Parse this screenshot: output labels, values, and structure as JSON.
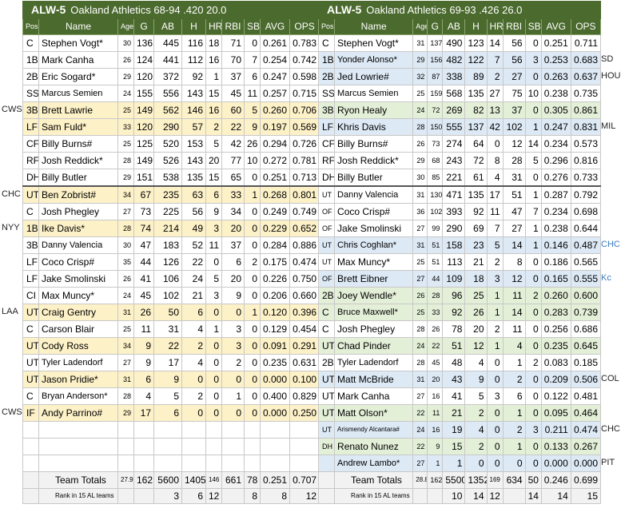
{
  "left": {
    "title": "ALW-5",
    "subtitle": "Oakland Athletics 68-94 .420 20.0",
    "headers": {
      "pos": "Pos",
      "name": "Name",
      "age": "Age",
      "g": "G",
      "ab": "AB",
      "h": "H",
      "hr": "HR",
      "rbi": "RBI",
      "sb": "SB",
      "avg": "AVG",
      "ops": "OPS"
    },
    "rows": [
      {
        "pos": "C",
        "name": "Stephen Vogt*",
        "age": "30",
        "g": "136",
        "ab": "445",
        "h": "116",
        "hr": "18",
        "rbi": "71",
        "sb": "0",
        "avg": "0.261",
        "ops": "0.783",
        "color": "white"
      },
      {
        "pos": "1B",
        "name": "Mark Canha",
        "age": "26",
        "g": "124",
        "ab": "441",
        "h": "112",
        "hr": "16",
        "rbi": "70",
        "sb": "7",
        "avg": "0.254",
        "ops": "0.742",
        "color": "white"
      },
      {
        "pos": "2B",
        "name": "Eric Sogard*",
        "age": "29",
        "g": "120",
        "ab": "372",
        "h": "92",
        "hr": "1",
        "rbi": "37",
        "sb": "6",
        "avg": "0.247",
        "ops": "0.598",
        "color": "white"
      },
      {
        "pos": "SS",
        "name": "Marcus Semien",
        "age": "24",
        "g": "155",
        "ab": "556",
        "h": "143",
        "hr": "15",
        "rbi": "45",
        "sb": "11",
        "avg": "0.257",
        "ops": "0.715",
        "color": "white",
        "smallname": true
      },
      {
        "pos": "3B",
        "name": "Brett Lawrie",
        "age": "25",
        "g": "149",
        "ab": "562",
        "h": "146",
        "hr": "16",
        "rbi": "60",
        "sb": "5",
        "avg": "0.260",
        "ops": "0.706",
        "color": "yellow",
        "side": "CWS"
      },
      {
        "pos": "LF",
        "name": "Sam Fuld*",
        "age": "33",
        "g": "120",
        "ab": "290",
        "h": "57",
        "hr": "2",
        "rbi": "22",
        "sb": "9",
        "avg": "0.197",
        "ops": "0.569",
        "color": "yellow"
      },
      {
        "pos": "CF",
        "name": "Billy Burns#",
        "age": "25",
        "g": "125",
        "ab": "520",
        "h": "153",
        "hr": "5",
        "rbi": "42",
        "sb": "26",
        "avg": "0.294",
        "ops": "0.726",
        "color": "white"
      },
      {
        "pos": "RF",
        "name": "Josh Reddick*",
        "age": "28",
        "g": "149",
        "ab": "526",
        "h": "143",
        "hr": "20",
        "rbi": "77",
        "sb": "10",
        "avg": "0.272",
        "ops": "0.781",
        "color": "white"
      },
      {
        "pos": "DH",
        "name": "Billy Butler",
        "age": "29",
        "g": "151",
        "ab": "538",
        "h": "135",
        "hr": "15",
        "rbi": "65",
        "sb": "0",
        "avg": "0.251",
        "ops": "0.713",
        "color": "white"
      },
      {
        "pos": "UT",
        "name": "Ben Zobrist#",
        "age": "34",
        "g": "67",
        "ab": "235",
        "h": "63",
        "hr": "6",
        "rbi": "33",
        "sb": "1",
        "avg": "0.268",
        "ops": "0.801",
        "color": "yellow",
        "side": "CHC",
        "divider": true
      },
      {
        "pos": "C",
        "name": "Josh Phegley",
        "age": "27",
        "g": "73",
        "ab": "225",
        "h": "56",
        "hr": "9",
        "rbi": "34",
        "sb": "0",
        "avg": "0.249",
        "ops": "0.749",
        "color": "white"
      },
      {
        "pos": "1B",
        "name": "Ike Davis*",
        "age": "28",
        "g": "74",
        "ab": "214",
        "h": "49",
        "hr": "3",
        "rbi": "20",
        "sb": "0",
        "avg": "0.229",
        "ops": "0.652",
        "color": "yellow",
        "side": "NYY"
      },
      {
        "pos": "3B",
        "name": "Danny Valencia",
        "age": "30",
        "g": "47",
        "ab": "183",
        "h": "52",
        "hr": "11",
        "rbi": "37",
        "sb": "0",
        "avg": "0.284",
        "ops": "0.886",
        "color": "white",
        "smallname": true
      },
      {
        "pos": "LF",
        "name": "Coco Crisp#",
        "age": "35",
        "g": "44",
        "ab": "126",
        "h": "22",
        "hr": "0",
        "rbi": "6",
        "sb": "2",
        "avg": "0.175",
        "ops": "0.474",
        "color": "white"
      },
      {
        "pos": "LF",
        "name": "Jake Smolinski",
        "age": "26",
        "g": "41",
        "ab": "106",
        "h": "24",
        "hr": "5",
        "rbi": "20",
        "sb": "0",
        "avg": "0.226",
        "ops": "0.750",
        "color": "white"
      },
      {
        "pos": "CI",
        "name": "Max Muncy*",
        "age": "24",
        "g": "45",
        "ab": "102",
        "h": "21",
        "hr": "3",
        "rbi": "9",
        "sb": "0",
        "avg": "0.206",
        "ops": "0.660",
        "color": "white"
      },
      {
        "pos": "UT",
        "name": "Craig Gentry",
        "age": "31",
        "g": "26",
        "ab": "50",
        "h": "6",
        "hr": "0",
        "rbi": "0",
        "sb": "1",
        "avg": "0.120",
        "ops": "0.396",
        "color": "yellow",
        "side": "LAA"
      },
      {
        "pos": "C",
        "name": "Carson Blair",
        "age": "25",
        "g": "11",
        "ab": "31",
        "h": "4",
        "hr": "1",
        "rbi": "3",
        "sb": "0",
        "avg": "0.129",
        "ops": "0.454",
        "color": "white"
      },
      {
        "pos": "UT",
        "name": "Cody Ross",
        "age": "34",
        "g": "9",
        "ab": "22",
        "h": "2",
        "hr": "0",
        "rbi": "3",
        "sb": "0",
        "avg": "0.091",
        "ops": "0.291",
        "color": "yellow"
      },
      {
        "pos": "UT",
        "name": "Tyler Ladendorf",
        "age": "27",
        "g": "9",
        "ab": "17",
        "h": "4",
        "hr": "0",
        "rbi": "2",
        "sb": "0",
        "avg": "0.235",
        "ops": "0.631",
        "color": "white",
        "smallname": true
      },
      {
        "pos": "UT",
        "name": "Jason Pridie*",
        "age": "31",
        "g": "6",
        "ab": "9",
        "h": "0",
        "hr": "0",
        "rbi": "0",
        "sb": "0",
        "avg": "0.000",
        "ops": "0.100",
        "color": "yellow"
      },
      {
        "pos": "C",
        "name": "Bryan Anderson*",
        "age": "28",
        "g": "4",
        "ab": "5",
        "h": "2",
        "hr": "0",
        "rbi": "1",
        "sb": "0",
        "avg": "0.400",
        "ops": "0.829",
        "color": "white",
        "smallname": true
      },
      {
        "pos": "IF",
        "name": "Andy Parrino#",
        "age": "29",
        "g": "17",
        "ab": "6",
        "h": "0",
        "hr": "0",
        "rbi": "0",
        "sb": "0",
        "avg": "0.000",
        "ops": "0.250",
        "color": "yellow",
        "side": "CWS"
      }
    ],
    "totals": {
      "label": "Team Totals",
      "age": "27.9",
      "g": "162",
      "ab": "5600",
      "h": "1405",
      "hr": "146",
      "rbi": "661",
      "sb": "78",
      "avg": "0.251",
      "ops": "0.707"
    },
    "rank": {
      "label": "Rank in 15 AL teams",
      "ab": "3",
      "h": "6",
      "hr": "12",
      "sb": "8",
      "avg": "8",
      "ops": "12"
    }
  },
  "right": {
    "title": "ALW-5",
    "subtitle": "Oakland Athletics  69-93 .426 26.0",
    "headers": {
      "pos": "Pos",
      "name": "Name",
      "age": "Age",
      "g": "G",
      "ab": "AB",
      "h": "H",
      "hr": "HR",
      "rbi": "RBI",
      "sb": "SB",
      "avg": "AVG",
      "ops": "OPS"
    },
    "rows": [
      {
        "pos": "C",
        "name": "Stephen Vogt*",
        "age": "31",
        "g": "137",
        "ab": "490",
        "h": "123",
        "hr": "14",
        "rbi": "56",
        "sb": "0",
        "avg": "0.251",
        "ops": "0.711",
        "color": "white"
      },
      {
        "pos": "1B",
        "name": "Yonder Alonso*",
        "age": "29",
        "g": "156",
        "ab": "482",
        "h": "122",
        "hr": "7",
        "rbi": "56",
        "sb": "3",
        "avg": "0.253",
        "ops": "0.683",
        "color": "blue",
        "side": "SD",
        "smallname": true
      },
      {
        "pos": "2B",
        "name": "Jed Lowrie#",
        "age": "32",
        "g": "87",
        "ab": "338",
        "h": "89",
        "hr": "2",
        "rbi": "27",
        "sb": "0",
        "avg": "0.263",
        "ops": "0.637",
        "color": "blue",
        "side": "HOU"
      },
      {
        "pos": "SS",
        "name": "Marcus Semien",
        "age": "25",
        "g": "159",
        "ab": "568",
        "h": "135",
        "hr": "27",
        "rbi": "75",
        "sb": "10",
        "avg": "0.238",
        "ops": "0.735",
        "color": "white",
        "smallname": true
      },
      {
        "pos": "3B",
        "name": "Ryon Healy",
        "age": "24",
        "g": "72",
        "ab": "269",
        "h": "82",
        "hr": "13",
        "rbi": "37",
        "sb": "0",
        "avg": "0.305",
        "ops": "0.861",
        "color": "green"
      },
      {
        "pos": "LF",
        "name": "Khris Davis",
        "age": "28",
        "g": "150",
        "ab": "555",
        "h": "137",
        "hr": "42",
        "rbi": "102",
        "sb": "1",
        "avg": "0.247",
        "ops": "0.831",
        "color": "blue",
        "side": "MIL"
      },
      {
        "pos": "CF",
        "name": "Billy Burns#",
        "age": "26",
        "g": "73",
        "ab": "274",
        "h": "64",
        "hr": "0",
        "rbi": "12",
        "sb": "14",
        "avg": "0.234",
        "ops": "0.573",
        "color": "white"
      },
      {
        "pos": "RF",
        "name": "Josh Reddick*",
        "age": "29",
        "g": "68",
        "ab": "243",
        "h": "72",
        "hr": "8",
        "rbi": "28",
        "sb": "5",
        "avg": "0.296",
        "ops": "0.816",
        "color": "white"
      },
      {
        "pos": "DH",
        "name": "Billy Butler",
        "age": "30",
        "g": "85",
        "ab": "221",
        "h": "61",
        "hr": "4",
        "rbi": "31",
        "sb": "0",
        "avg": "0.276",
        "ops": "0.733",
        "color": "white"
      },
      {
        "pos": "UT",
        "name": "Danny Valencia",
        "age": "31",
        "g": "130",
        "ab": "471",
        "h": "135",
        "hr": "17",
        "rbi": "51",
        "sb": "1",
        "avg": "0.287",
        "ops": "0.792",
        "color": "white",
        "smallname": true,
        "divider": true,
        "smallpos": true
      },
      {
        "pos": "OF",
        "name": "Coco Crisp#",
        "age": "36",
        "g": "102",
        "ab": "393",
        "h": "92",
        "hr": "11",
        "rbi": "47",
        "sb": "7",
        "avg": "0.234",
        "ops": "0.698",
        "color": "white",
        "smallpos": true
      },
      {
        "pos": "OF",
        "name": "Jake Smolinski",
        "age": "27",
        "g": "99",
        "ab": "290",
        "h": "69",
        "hr": "7",
        "rbi": "27",
        "sb": "1",
        "avg": "0.238",
        "ops": "0.644",
        "color": "white",
        "smallpos": true
      },
      {
        "pos": "UT",
        "name": "Chris Coghlan*",
        "age": "31",
        "g": "51",
        "ab": "158",
        "h": "23",
        "hr": "5",
        "rbi": "14",
        "sb": "1",
        "avg": "0.146",
        "ops": "0.487",
        "color": "blue",
        "side": "CHC",
        "sideblue": true,
        "smallname": true,
        "smallpos": true
      },
      {
        "pos": "UT",
        "name": "Max Muncy*",
        "age": "25",
        "g": "51",
        "ab": "113",
        "h": "21",
        "hr": "2",
        "rbi": "8",
        "sb": "0",
        "avg": "0.186",
        "ops": "0.565",
        "color": "white",
        "smallpos": true
      },
      {
        "pos": "OF",
        "name": "Brett Eibner",
        "age": "27",
        "g": "44",
        "ab": "109",
        "h": "18",
        "hr": "3",
        "rbi": "12",
        "sb": "0",
        "avg": "0.165",
        "ops": "0.555",
        "color": "blue",
        "side": "Kc",
        "sideblue": true,
        "smallpos": true
      },
      {
        "pos": "2B",
        "name": "Joey Wendle*",
        "age": "26",
        "g": "28",
        "ab": "96",
        "h": "25",
        "hr": "1",
        "rbi": "11",
        "sb": "2",
        "avg": "0.260",
        "ops": "0.600",
        "color": "green"
      },
      {
        "pos": "C",
        "name": "Bruce Maxwell*",
        "age": "25",
        "g": "33",
        "ab": "92",
        "h": "26",
        "hr": "1",
        "rbi": "14",
        "sb": "0",
        "avg": "0.283",
        "ops": "0.739",
        "color": "green",
        "smallname": true
      },
      {
        "pos": "C",
        "name": "Josh Phegley",
        "age": "28",
        "g": "26",
        "ab": "78",
        "h": "20",
        "hr": "2",
        "rbi": "11",
        "sb": "0",
        "avg": "0.256",
        "ops": "0.686",
        "color": "white"
      },
      {
        "pos": "UT",
        "name": "Chad Pinder",
        "age": "24",
        "g": "22",
        "ab": "51",
        "h": "12",
        "hr": "1",
        "rbi": "4",
        "sb": "0",
        "avg": "0.235",
        "ops": "0.645",
        "color": "green"
      },
      {
        "pos": "2B",
        "name": "Tyler Ladendorf",
        "age": "28",
        "g": "45",
        "ab": "48",
        "h": "4",
        "hr": "0",
        "rbi": "1",
        "sb": "2",
        "avg": "0.083",
        "ops": "0.185",
        "color": "white",
        "smallname": true
      },
      {
        "pos": "UT",
        "name": "Matt McBride",
        "age": "31",
        "g": "20",
        "ab": "43",
        "h": "9",
        "hr": "0",
        "rbi": "2",
        "sb": "0",
        "avg": "0.209",
        "ops": "0.506",
        "color": "blue",
        "side": "COL"
      },
      {
        "pos": "UT",
        "name": "Mark Canha",
        "age": "27",
        "g": "16",
        "ab": "41",
        "h": "5",
        "hr": "3",
        "rbi": "6",
        "sb": "0",
        "avg": "0.122",
        "ops": "0.481",
        "color": "white"
      },
      {
        "pos": "UT",
        "name": "Matt Olson*",
        "age": "22",
        "g": "11",
        "ab": "21",
        "h": "2",
        "hr": "0",
        "rbi": "1",
        "sb": "0",
        "avg": "0.095",
        "ops": "0.464",
        "color": "green"
      },
      {
        "pos": "UT",
        "name": "Arismendy Alcantara#",
        "age": "24",
        "g": "16",
        "ab": "19",
        "h": "4",
        "hr": "0",
        "rbi": "2",
        "sb": "3",
        "avg": "0.211",
        "ops": "0.474",
        "color": "blue",
        "side": "CHC",
        "tinyname": true,
        "smallpos": true
      },
      {
        "pos": "DH",
        "name": "Renato Nunez",
        "age": "22",
        "g": "9",
        "ab": "15",
        "h": "2",
        "hr": "0",
        "rbi": "1",
        "sb": "0",
        "avg": "0.133",
        "ops": "0.267",
        "color": "green",
        "smallpos": true
      },
      {
        "pos": "",
        "name": "Andrew Lambo*",
        "age": "27",
        "g": "1",
        "ab": "1",
        "h": "0",
        "hr": "0",
        "rbi": "0",
        "sb": "0",
        "avg": "0.000",
        "ops": "0.000",
        "color": "blue",
        "side": "PIT",
        "smallname": true
      }
    ],
    "totals": {
      "label": "Team Totals",
      "age": "28.8",
      "g": "162",
      "ab": "5500",
      "h": "1352",
      "hr": "169",
      "rbi": "634",
      "sb": "50",
      "avg": "0.246",
      "ops": "0.699"
    },
    "rank": {
      "label": "Rank in 15 AL teams",
      "ab": "10",
      "h": "14",
      "hr": "12",
      "sb": "14",
      "avg": "14",
      "ops": "15"
    }
  }
}
